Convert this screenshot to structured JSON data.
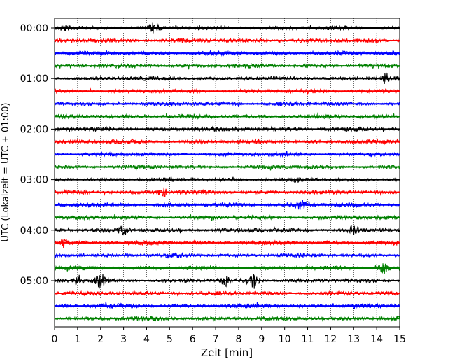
{
  "chart_data": {
    "type": "line",
    "title": "",
    "xlabel": "Zeit  [min]",
    "ylabel": "UTC (Lokalzeit = UTC + 01:00)",
    "xlim": [
      0,
      15
    ],
    "x_ticks": [
      0,
      1,
      2,
      3,
      4,
      5,
      6,
      7,
      8,
      9,
      10,
      11,
      12,
      13,
      14,
      15
    ],
    "y_tick_labels": [
      "00:00",
      "01:00",
      "02:00",
      "03:00",
      "04:00",
      "05:00"
    ],
    "y_tick_rows": [
      0,
      4,
      8,
      12,
      16,
      20
    ],
    "row_minutes": 15,
    "row_count": 24,
    "row_colors": [
      "#000000",
      "#ff0000",
      "#0000ff",
      "#008000"
    ],
    "vertical_gridlines": "dotted",
    "events": [
      {
        "row": 0,
        "minute": 4.35,
        "strength": 2.2
      },
      {
        "row": 0,
        "minute": 0.4,
        "strength": 1.2
      },
      {
        "row": 4,
        "minute": 14.4,
        "strength": 2.0
      },
      {
        "row": 13,
        "minute": 4.7,
        "strength": 1.8
      },
      {
        "row": 14,
        "minute": 10.7,
        "strength": 1.8
      },
      {
        "row": 16,
        "minute": 3.0,
        "strength": 1.6
      },
      {
        "row": 16,
        "minute": 13.0,
        "strength": 1.6
      },
      {
        "row": 17,
        "minute": 0.4,
        "strength": 1.8
      },
      {
        "row": 19,
        "minute": 14.3,
        "strength": 3.0
      },
      {
        "row": 20,
        "minute": 1.0,
        "strength": 2.2
      },
      {
        "row": 20,
        "minute": 2.0,
        "strength": 3.0
      },
      {
        "row": 20,
        "minute": 7.4,
        "strength": 2.0
      },
      {
        "row": 20,
        "minute": 8.7,
        "strength": 3.2
      }
    ]
  }
}
